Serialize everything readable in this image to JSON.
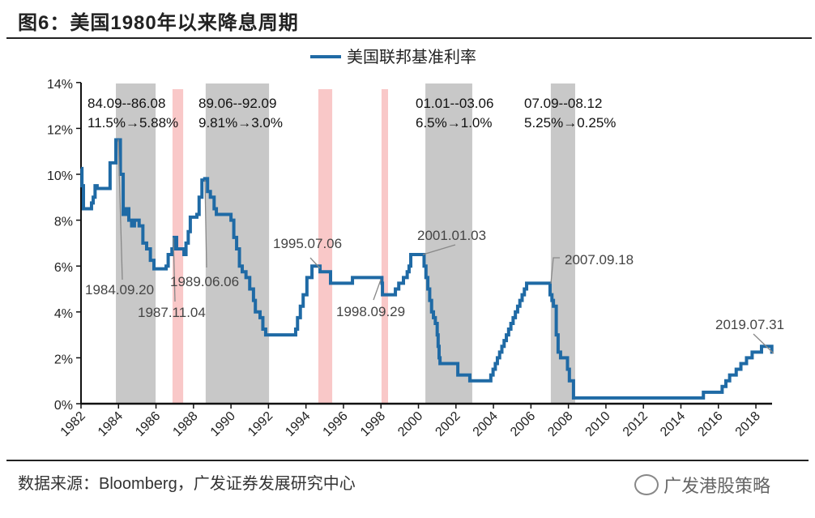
{
  "header": {
    "title": "图6：美国1980年以来降息周期"
  },
  "footer": {
    "source": "数据来源：Bloomberg，广发证券发展研究中心",
    "logo_text": "广发港股策略"
  },
  "chart_data": {
    "type": "line",
    "title": "",
    "xlabel": "",
    "ylabel": "",
    "xlim": [
      1982,
      2018.95
    ],
    "ylim": [
      0,
      14
    ],
    "x_ticks": [
      "1982",
      "1984",
      "1986",
      "1988",
      "1990",
      "1992",
      "1994",
      "1996",
      "1998",
      "2000",
      "2002",
      "2004",
      "2006",
      "2008",
      "2010",
      "2012",
      "2014",
      "2016",
      "2018"
    ],
    "y_ticks": [
      "0%",
      "2%",
      "4%",
      "6%",
      "8%",
      "10%",
      "12%",
      "14%"
    ],
    "grid": false,
    "legend": {
      "position": "top-center",
      "entries": [
        "美国联邦基准利率"
      ]
    },
    "colors": {
      "series": "#1f6aa5",
      "easing_period": "#c8c8c8",
      "short_cut": "#f9c8c8"
    },
    "series": [
      {
        "name": "美国联邦基准利率",
        "step": true,
        "points": [
          [
            1982.0,
            10.25
          ],
          [
            1982.05,
            9.5
          ],
          [
            1982.13,
            8.5
          ],
          [
            1982.56,
            8.75
          ],
          [
            1982.65,
            9.0
          ],
          [
            1982.75,
            9.5
          ],
          [
            1982.86,
            9.38
          ],
          [
            1983.55,
            10.5
          ],
          [
            1983.86,
            11.5
          ],
          [
            1984.1,
            10.0
          ],
          [
            1984.25,
            8.25
          ],
          [
            1984.4,
            8.5
          ],
          [
            1984.55,
            8.0
          ],
          [
            1984.7,
            7.75
          ],
          [
            1984.85,
            8.0
          ],
          [
            1985.1,
            7.75
          ],
          [
            1985.3,
            7.0
          ],
          [
            1985.5,
            6.75
          ],
          [
            1985.7,
            6.25
          ],
          [
            1985.89,
            5.88
          ],
          [
            1986.54,
            6.0
          ],
          [
            1986.65,
            6.5
          ],
          [
            1986.85,
            6.75
          ],
          [
            1986.97,
            7.25
          ],
          [
            1987.1,
            6.75
          ],
          [
            1987.49,
            6.5
          ],
          [
            1987.6,
            7.0
          ],
          [
            1987.72,
            7.5
          ],
          [
            1987.83,
            8.13
          ],
          [
            1988.18,
            8.25
          ],
          [
            1988.3,
            9.0
          ],
          [
            1988.45,
            9.75
          ],
          [
            1988.6,
            9.81
          ],
          [
            1988.75,
            9.25
          ],
          [
            1988.9,
            9.0
          ],
          [
            1989.1,
            8.5
          ],
          [
            1989.22,
            8.25
          ],
          [
            1990.0,
            8.0
          ],
          [
            1990.15,
            7.25
          ],
          [
            1990.3,
            6.75
          ],
          [
            1990.45,
            6.0
          ],
          [
            1990.6,
            5.75
          ],
          [
            1990.8,
            5.5
          ],
          [
            1991.0,
            5.0
          ],
          [
            1991.2,
            4.5
          ],
          [
            1991.3,
            4.0
          ],
          [
            1991.55,
            3.75
          ],
          [
            1991.7,
            3.25
          ],
          [
            1991.85,
            3.0
          ],
          [
            1993.45,
            3.25
          ],
          [
            1993.55,
            3.75
          ],
          [
            1993.7,
            4.25
          ],
          [
            1993.85,
            4.75
          ],
          [
            1994.05,
            5.5
          ],
          [
            1994.32,
            6.0
          ],
          [
            1994.75,
            5.75
          ],
          [
            1995.31,
            5.25
          ],
          [
            1996.48,
            5.5
          ],
          [
            1998.05,
            5.25
          ],
          [
            1998.08,
            4.75
          ],
          [
            1998.77,
            5.0
          ],
          [
            1998.95,
            5.25
          ],
          [
            1999.2,
            5.5
          ],
          [
            1999.4,
            5.75
          ],
          [
            1999.5,
            6.0
          ],
          [
            1999.59,
            6.5
          ],
          [
            2000.3,
            6.0
          ],
          [
            2000.4,
            5.5
          ],
          [
            2000.5,
            5.0
          ],
          [
            2000.6,
            4.5
          ],
          [
            2000.7,
            4.0
          ],
          [
            2000.8,
            3.75
          ],
          [
            2000.9,
            3.5
          ],
          [
            2001.0,
            3.0
          ],
          [
            2001.05,
            2.5
          ],
          [
            2001.1,
            2.0
          ],
          [
            2001.15,
            1.75
          ],
          [
            2002.1,
            1.25
          ],
          [
            2002.74,
            1.0
          ],
          [
            2003.86,
            1.25
          ],
          [
            2003.98,
            1.5
          ],
          [
            2004.1,
            1.75
          ],
          [
            2004.21,
            2.0
          ],
          [
            2004.33,
            2.25
          ],
          [
            2004.45,
            2.5
          ],
          [
            2004.57,
            2.75
          ],
          [
            2004.69,
            3.0
          ],
          [
            2004.81,
            3.25
          ],
          [
            2004.93,
            3.5
          ],
          [
            2005.05,
            3.75
          ],
          [
            2005.17,
            4.0
          ],
          [
            2005.29,
            4.25
          ],
          [
            2005.41,
            4.5
          ],
          [
            2005.53,
            4.75
          ],
          [
            2005.65,
            5.0
          ],
          [
            2005.77,
            5.25
          ],
          [
            2007.02,
            4.75
          ],
          [
            2007.12,
            4.5
          ],
          [
            2007.2,
            4.25
          ],
          [
            2007.35,
            3.0
          ],
          [
            2007.45,
            2.25
          ],
          [
            2007.58,
            2.0
          ],
          [
            2007.95,
            1.5
          ],
          [
            2008.05,
            1.0
          ],
          [
            2008.27,
            0.25
          ],
          [
            2015.2,
            0.5
          ],
          [
            2016.2,
            0.75
          ],
          [
            2016.4,
            1.0
          ],
          [
            2016.6,
            1.25
          ],
          [
            2016.95,
            1.5
          ],
          [
            2017.2,
            1.75
          ],
          [
            2017.5,
            2.0
          ],
          [
            2017.8,
            2.25
          ],
          [
            2018.3,
            2.5
          ],
          [
            2018.85,
            2.25
          ],
          [
            2018.9,
            2.25
          ]
        ]
      }
    ],
    "shaded_periods": [
      {
        "kind": "easing_period",
        "x": [
          1983.86,
          1985.98
        ],
        "label": [
          "84.09--86.08",
          "11.5%→5.88%"
        ]
      },
      {
        "kind": "short_cut",
        "x": [
          1986.88,
          1987.45
        ]
      },
      {
        "kind": "easing_period",
        "x": [
          1988.65,
          1992.03
        ],
        "label": [
          "89.06--92.09",
          "9.81%→3.0%"
        ]
      },
      {
        "kind": "short_cut",
        "x": [
          1994.66,
          1995.4
        ]
      },
      {
        "kind": "short_cut",
        "x": [
          1998.03,
          1998.38
        ]
      },
      {
        "kind": "easing_period",
        "x": [
          2000.37,
          2002.87
        ],
        "label": [
          "01.01--03.06",
          "6.5%→1.0%"
        ]
      },
      {
        "kind": "easing_period",
        "x": [
          2007.06,
          2008.36
        ],
        "label": [
          "07.09--08.12",
          "5.25%→0.25%"
        ]
      }
    ],
    "annotations": [
      "1984.09.20",
      "1987.11.04",
      "1989.06.06",
      "1995.07.06",
      "1998.09.29",
      "2001.01.03",
      "2007.09.18",
      "2019.07.31"
    ]
  }
}
